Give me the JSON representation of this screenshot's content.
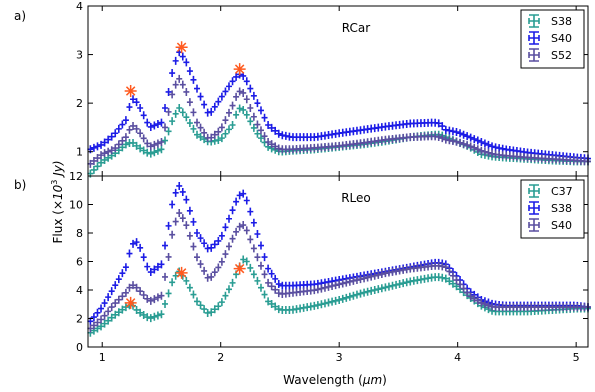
{
  "figure": {
    "ylabel_prefix": "Flux (",
    "ylabel_unit": "×10",
    "ylabel_exp": "3",
    "ylabel_suffix": " Jy)",
    "xlabel": "Wavelength (",
    "xlabel_unit": "μm",
    "xlabel_close": ")"
  },
  "colors": {
    "teal": "#2a9d93",
    "blue": "#1c1ce6",
    "purple": "#5a4fa0",
    "star": "#ff5a1f"
  },
  "chart_data": [
    {
      "type": "scatter",
      "panel_label": "a)",
      "title": "RCar",
      "xlim": [
        0.88,
        5.1
      ],
      "ylim": [
        0.5,
        4
      ],
      "xticks": [
        1,
        2,
        3,
        4,
        5
      ],
      "xtick_labels": [
        "",
        "",
        "",
        "",
        ""
      ],
      "yticks": [
        1,
        2,
        3,
        4
      ],
      "ytick_labels": [
        "1",
        "2",
        "3",
        "4"
      ],
      "legend_position": "top-right",
      "grid": false,
      "x": [
        0.9,
        1.0,
        1.1,
        1.2,
        1.25,
        1.3,
        1.4,
        1.5,
        1.55,
        1.6,
        1.65,
        1.7,
        1.8,
        1.9,
        2.0,
        2.1,
        2.15,
        2.2,
        2.3,
        2.4,
        2.5,
        2.6,
        2.8,
        3.0,
        3.2,
        3.4,
        3.6,
        3.8,
        3.85,
        3.9,
        4.0,
        4.1,
        4.2,
        4.3,
        4.4,
        4.6,
        4.8,
        5.0,
        5.1
      ],
      "series": [
        {
          "name": "S38",
          "color_key": "teal",
          "values": [
            0.55,
            0.8,
            0.95,
            1.15,
            1.2,
            1.1,
            0.95,
            1.05,
            1.35,
            1.7,
            1.9,
            1.75,
            1.35,
            1.2,
            1.25,
            1.55,
            1.9,
            1.85,
            1.4,
            1.1,
            1.0,
            1.02,
            1.05,
            1.1,
            1.15,
            1.22,
            1.3,
            1.35,
            1.35,
            1.3,
            1.2,
            1.1,
            0.95,
            0.9,
            0.88,
            0.85,
            0.82,
            0.8,
            0.8
          ]
        },
        {
          "name": "S40",
          "color_key": "blue",
          "values": [
            1.05,
            1.15,
            1.35,
            1.65,
            2.1,
            2.0,
            1.5,
            1.6,
            2.1,
            2.75,
            3.05,
            2.9,
            2.3,
            1.75,
            2.1,
            2.45,
            2.6,
            2.55,
            2.05,
            1.55,
            1.35,
            1.3,
            1.3,
            1.38,
            1.45,
            1.52,
            1.58,
            1.6,
            1.58,
            1.45,
            1.4,
            1.3,
            1.2,
            1.1,
            1.05,
            0.98,
            0.93,
            0.88,
            0.86
          ]
        },
        {
          "name": "S52",
          "color_key": "purple",
          "values": [
            0.75,
            0.95,
            1.05,
            1.3,
            1.55,
            1.45,
            1.1,
            1.2,
            1.7,
            2.3,
            2.5,
            2.3,
            1.6,
            1.25,
            1.45,
            1.95,
            2.25,
            2.2,
            1.6,
            1.2,
            1.05,
            1.05,
            1.08,
            1.12,
            1.18,
            1.25,
            1.3,
            1.32,
            1.3,
            1.25,
            1.2,
            1.12,
            1.02,
            0.95,
            0.92,
            0.88,
            0.85,
            0.82,
            0.8
          ]
        }
      ],
      "markers": {
        "x": [
          1.24,
          1.67,
          2.16
        ],
        "y": [
          2.25,
          3.15,
          2.7
        ]
      }
    },
    {
      "type": "scatter",
      "panel_label": "b)",
      "title": "RLeo",
      "xlim": [
        0.88,
        5.1
      ],
      "ylim": [
        0,
        12
      ],
      "xticks": [
        1,
        2,
        3,
        4,
        5
      ],
      "xtick_labels": [
        "1",
        "2",
        "3",
        "4",
        "5"
      ],
      "yticks": [
        0,
        2,
        4,
        6,
        8,
        10,
        12
      ],
      "ytick_labels": [
        "0",
        "2",
        "4",
        "6",
        "8",
        "10",
        "12"
      ],
      "legend_position": "top-right",
      "grid": false,
      "x": [
        0.9,
        1.0,
        1.1,
        1.2,
        1.25,
        1.3,
        1.4,
        1.5,
        1.55,
        1.6,
        1.65,
        1.7,
        1.8,
        1.9,
        2.0,
        2.1,
        2.15,
        2.2,
        2.3,
        2.4,
        2.5,
        2.6,
        2.8,
        3.0,
        3.2,
        3.4,
        3.6,
        3.8,
        3.85,
        3.9,
        4.0,
        4.1,
        4.2,
        4.3,
        4.4,
        4.6,
        4.8,
        5.0,
        5.1
      ],
      "series": [
        {
          "name": "C37",
          "color_key": "teal",
          "values": [
            1.0,
            1.5,
            2.2,
            2.8,
            3.0,
            2.5,
            2.0,
            2.3,
            3.5,
            4.8,
            5.3,
            4.8,
            3.2,
            2.3,
            3.0,
            4.5,
            5.5,
            6.3,
            4.8,
            3.2,
            2.6,
            2.6,
            2.9,
            3.3,
            3.8,
            4.2,
            4.6,
            4.9,
            4.9,
            4.8,
            4.2,
            3.5,
            2.9,
            2.5,
            2.5,
            2.5,
            2.6,
            2.7,
            2.7
          ]
        },
        {
          "name": "S38",
          "color_key": "blue",
          "values": [
            1.8,
            2.8,
            4.2,
            5.6,
            7.2,
            7.4,
            5.2,
            5.8,
            8.0,
            10.5,
            11.3,
            10.6,
            8.0,
            6.8,
            7.6,
            9.6,
            10.6,
            10.8,
            8.2,
            5.5,
            4.3,
            4.3,
            4.4,
            4.7,
            5.0,
            5.3,
            5.6,
            5.9,
            5.9,
            5.8,
            4.9,
            3.9,
            3.3,
            3.0,
            2.9,
            2.9,
            2.9,
            2.9,
            2.8
          ]
        },
        {
          "name": "S40",
          "color_key": "purple",
          "values": [
            1.3,
            2.0,
            3.0,
            3.8,
            4.4,
            4.1,
            3.2,
            3.6,
            5.8,
            8.4,
            9.4,
            8.8,
            6.3,
            4.7,
            5.8,
            7.6,
            8.4,
            8.6,
            6.5,
            4.5,
            3.7,
            3.8,
            4.0,
            4.4,
            4.8,
            5.2,
            5.5,
            5.7,
            5.7,
            5.6,
            4.6,
            3.6,
            3.1,
            2.8,
            2.8,
            2.8,
            2.8,
            2.8,
            2.8
          ]
        }
      ],
      "markers": {
        "x": [
          1.24,
          1.67,
          2.16
        ],
        "y": [
          3.1,
          5.2,
          5.5
        ]
      }
    }
  ]
}
